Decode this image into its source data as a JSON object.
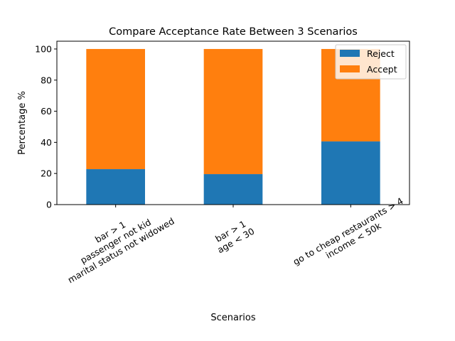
{
  "chart_data": {
    "type": "bar",
    "stacked": true,
    "title": "Compare Acceptance Rate Between 3 Scenarios",
    "xlabel": "Scenarios",
    "ylabel": "Percentage %",
    "ylim": [
      0,
      105
    ],
    "yticks": [
      0,
      20,
      40,
      60,
      80,
      100
    ],
    "grid": false,
    "legend_position": "top-right",
    "categories": [
      [
        "bar > 1",
        "passenger not kid",
        "marital status not widowed"
      ],
      [
        "bar > 1",
        "age < 30"
      ],
      [
        "go to cheap restaurants > 4",
        "income < 50k"
      ]
    ],
    "series": [
      {
        "name": "Reject",
        "color": "#1f77b4",
        "values": [
          22.8,
          19.6,
          40.6
        ]
      },
      {
        "name": "Accept",
        "color": "#ff7f0e",
        "values": [
          77.2,
          80.4,
          59.4
        ]
      }
    ]
  }
}
